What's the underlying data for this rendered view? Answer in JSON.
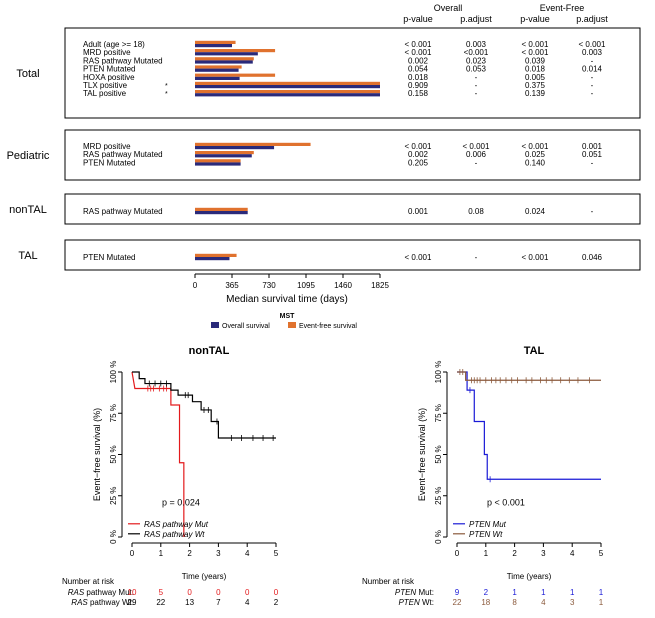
{
  "top_chart": {
    "header": {
      "overall": "Overall",
      "event_free": "Event-Free",
      "pvalue": "p-value",
      "padjust": "p.adjust"
    },
    "sections": [
      {
        "title": "Total",
        "rows": [
          {
            "label": "Adult (age >= 18)",
            "star": "",
            "overall": 365,
            "efs": 400,
            "os_p": "< 0.001",
            "os_padj": "0.003",
            "efs_p": "< 0.001",
            "efs_padj": "< 0.001"
          },
          {
            "label": "MRD positive",
            "star": "",
            "overall": 620,
            "efs": 790,
            "os_p": "< 0.001",
            "os_padj": "<0.001",
            "efs_p": "< 0.001",
            "efs_padj": "0.003"
          },
          {
            "label": "RAS pathway Mutated",
            "star": "",
            "overall": 570,
            "efs": 580,
            "os_p": "0.002",
            "os_padj": "0.023",
            "efs_p": "0.039",
            "efs_padj": "-"
          },
          {
            "label": "PTEN Mutated",
            "star": "",
            "overall": 430,
            "efs": 460,
            "os_p": "0.054",
            "os_padj": "0.053",
            "efs_p": "0.018",
            "efs_padj": "0.014"
          },
          {
            "label": "HOXA positive",
            "star": "",
            "overall": 440,
            "efs": 790,
            "os_p": "0.018",
            "os_padj": "-",
            "efs_p": "0.005",
            "efs_padj": "-"
          },
          {
            "label": "TLX positive",
            "star": "*",
            "overall": 1825,
            "efs": 1825,
            "os_p": "0.909",
            "os_padj": "-",
            "efs_p": "0.375",
            "efs_padj": "-"
          },
          {
            "label": "TAL positive",
            "star": "*",
            "overall": 1825,
            "efs": 1825,
            "os_p": "0.158",
            "os_padj": "-",
            "efs_p": "0.139",
            "efs_padj": "-"
          }
        ]
      },
      {
        "title": "Pediatric",
        "rows": [
          {
            "label": "MRD positive",
            "star": "",
            "overall": 780,
            "efs": 1140,
            "os_p": "< 0.001",
            "os_padj": "< 0.001",
            "efs_p": "< 0.001",
            "efs_padj": "0.001"
          },
          {
            "label": "RAS pathway Mutated",
            "star": "",
            "overall": 560,
            "efs": 580,
            "os_p": "0.002",
            "os_padj": "0.006",
            "efs_p": "0.025",
            "efs_padj": "0.051"
          },
          {
            "label": "PTEN  Mutated",
            "star": "",
            "overall": 450,
            "efs": 450,
            "os_p": "0.205",
            "os_padj": "-",
            "efs_p": "0.140",
            "efs_padj": "-"
          }
        ]
      },
      {
        "title": "nonTAL",
        "rows": [
          {
            "label": "RAS pathway Mutated",
            "star": "",
            "overall": 520,
            "efs": 520,
            "os_p": "0.001",
            "os_padj": "0.08",
            "efs_p": "0.024",
            "efs_padj": "-"
          }
        ]
      },
      {
        "title": "TAL",
        "rows": [
          {
            "label": "PTEN Mutated",
            "star": "",
            "overall": 340,
            "efs": 410,
            "os_p": "< 0.001",
            "os_padj": "-",
            "efs_p": "< 0.001",
            "efs_padj": "0.046"
          }
        ]
      }
    ],
    "axis": {
      "ticks": [
        0,
        365,
        730,
        1095,
        1460,
        1825
      ],
      "max": 1825,
      "label": "Median survival time (days)"
    },
    "legend": {
      "title": "MST",
      "overall": "Overall survival",
      "efs": "Event-free survival"
    },
    "colors": {
      "overall": "#2a2a7a",
      "efs": "#e0722e"
    }
  },
  "chart_data": [
    {
      "type": "bar",
      "orientation": "horizontal",
      "xlabel": "Median survival time (days)",
      "xlim": [
        0,
        1825
      ],
      "categories": [
        "Total: Adult (age >= 18)",
        "Total: MRD positive",
        "Total: RAS pathway Mutated",
        "Total: PTEN Mutated",
        "Total: HOXA positive",
        "Total: TLX positive",
        "Total: TAL positive",
        "Pediatric: MRD positive",
        "Pediatric: RAS pathway Mutated",
        "Pediatric: PTEN  Mutated",
        "nonTAL: RAS pathway Mutated",
        "TAL: PTEN Mutated"
      ],
      "series": [
        {
          "name": "Overall survival",
          "values": [
            365,
            620,
            570,
            430,
            440,
            1825,
            1825,
            780,
            560,
            450,
            520,
            340
          ]
        },
        {
          "name": "Event-free survival",
          "values": [
            400,
            790,
            580,
            460,
            790,
            1825,
            1825,
            1140,
            580,
            450,
            520,
            410
          ]
        }
      ]
    },
    {
      "type": "line",
      "title": "nonTAL",
      "xlabel": "Time (years)",
      "ylabel": "Event−free survival (%)",
      "xlim": [
        0,
        5
      ],
      "ylim": [
        0,
        100
      ],
      "annotation": "p = 0.024",
      "series": [
        {
          "name": "RAS pathway Mut",
          "color": "#e31a1c",
          "steps": [
            [
              0,
              100
            ],
            [
              0.1,
              90
            ],
            [
              1.35,
              90
            ],
            [
              1.35,
              80
            ],
            [
              1.65,
              80
            ],
            [
              1.65,
              45
            ],
            [
              1.8,
              45
            ],
            [
              1.8,
              0
            ]
          ],
          "censors": [
            [
              0.55,
              90
            ],
            [
              0.65,
              90
            ],
            [
              0.75,
              90
            ],
            [
              0.95,
              90
            ],
            [
              1.1,
              90
            ],
            [
              1.2,
              90
            ]
          ]
        },
        {
          "name": "RAS pathway Wt",
          "color": "#000000",
          "steps": [
            [
              0,
              100
            ],
            [
              0.25,
              100
            ],
            [
              0.25,
              96
            ],
            [
              0.45,
              96
            ],
            [
              0.45,
              93
            ],
            [
              1.35,
              93
            ],
            [
              1.35,
              89
            ],
            [
              1.6,
              89
            ],
            [
              1.6,
              86
            ],
            [
              2.1,
              86
            ],
            [
              2.1,
              82
            ],
            [
              2.4,
              82
            ],
            [
              2.4,
              77
            ],
            [
              2.75,
              77
            ],
            [
              2.75,
              70
            ],
            [
              3.0,
              70
            ],
            [
              3.0,
              60
            ],
            [
              5,
              60
            ]
          ],
          "censors": [
            [
              0.6,
              93
            ],
            [
              0.8,
              93
            ],
            [
              1.0,
              93
            ],
            [
              1.2,
              93
            ],
            [
              1.85,
              86
            ],
            [
              1.95,
              86
            ],
            [
              2.5,
              77
            ],
            [
              2.65,
              77
            ],
            [
              2.95,
              70
            ],
            [
              3.45,
              60
            ],
            [
              3.8,
              60
            ],
            [
              4.2,
              60
            ],
            [
              4.55,
              60
            ],
            [
              4.9,
              60
            ]
          ]
        }
      ],
      "risk_table": {
        "label": "Number at risk",
        "times": [
          0,
          1,
          2,
          3,
          4,
          5
        ],
        "rows": [
          {
            "label_italic": "RAS",
            "label_rest": " pathway Mut:",
            "values": [
              10,
              5,
              0,
              0,
              0,
              0
            ]
          },
          {
            "label_italic": "RAS",
            "label_rest": " pathway Wt:",
            "values": [
              29,
              22,
              13,
              7,
              4,
              2
            ]
          }
        ]
      }
    },
    {
      "type": "line",
      "title": "TAL",
      "xlabel": "Time (years)",
      "ylabel": "Event−free survival (%)",
      "xlim": [
        0,
        5
      ],
      "ylim": [
        0,
        100
      ],
      "annotation": "p < 0.001",
      "series": [
        {
          "name": "PTEN Mut",
          "color": "#1a1ad6",
          "steps": [
            [
              0,
              100
            ],
            [
              0.35,
              100
            ],
            [
              0.35,
              89
            ],
            [
              0.6,
              89
            ],
            [
              0.6,
              70
            ],
            [
              0.95,
              70
            ],
            [
              0.95,
              50
            ],
            [
              1.05,
              50
            ],
            [
              1.05,
              35
            ],
            [
              5,
              35
            ]
          ],
          "censors": [
            [
              0.45,
              89
            ],
            [
              1.15,
              35
            ]
          ]
        },
        {
          "name": "PTEN Wt",
          "color": "#8b5a3c",
          "steps": [
            [
              0,
              100
            ],
            [
              0.3,
              100
            ],
            [
              0.3,
              95
            ],
            [
              5,
              95
            ]
          ],
          "censors": [
            [
              0.1,
              100
            ],
            [
              0.2,
              100
            ],
            [
              0.5,
              95
            ],
            [
              0.6,
              95
            ],
            [
              0.7,
              95
            ],
            [
              0.8,
              95
            ],
            [
              1.0,
              95
            ],
            [
              1.2,
              95
            ],
            [
              1.35,
              95
            ],
            [
              1.5,
              95
            ],
            [
              1.7,
              95
            ],
            [
              1.9,
              95
            ],
            [
              2.1,
              95
            ],
            [
              2.4,
              95
            ],
            [
              2.6,
              95
            ],
            [
              2.9,
              95
            ],
            [
              3.1,
              95
            ],
            [
              3.3,
              95
            ],
            [
              3.6,
              95
            ],
            [
              3.9,
              95
            ],
            [
              4.2,
              95
            ],
            [
              4.6,
              95
            ]
          ]
        }
      ],
      "risk_table": {
        "label": "Number at risk",
        "times": [
          0,
          1,
          2,
          3,
          4,
          5
        ],
        "rows": [
          {
            "label_italic": "PTEN",
            "label_rest": " Mut:",
            "values": [
              9,
              2,
              1,
              1,
              1,
              1
            ]
          },
          {
            "label_italic": "PTEN",
            "label_rest": " Wt:",
            "values": [
              22,
              18,
              8,
              4,
              3,
              1
            ]
          }
        ]
      }
    }
  ]
}
